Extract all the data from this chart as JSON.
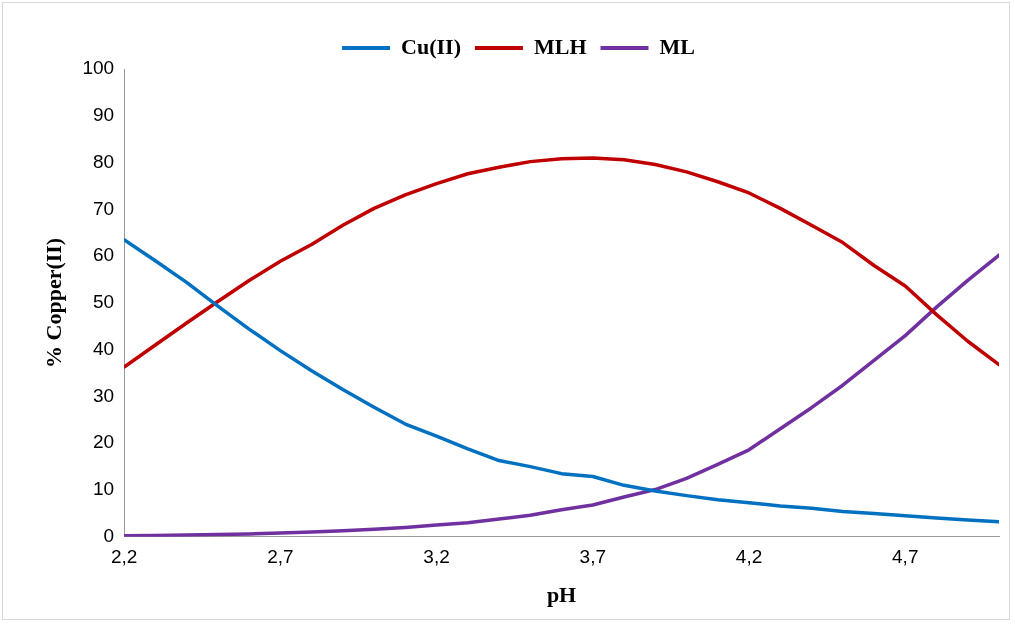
{
  "chart_data": {
    "type": "line",
    "xlabel": "pH",
    "ylabel": "% Copper(II)",
    "x": [
      2.2,
      2.3,
      2.4,
      2.5,
      2.6,
      2.7,
      2.8,
      2.9,
      3.0,
      3.1,
      3.2,
      3.3,
      3.4,
      3.5,
      3.6,
      3.7,
      3.8,
      3.9,
      4.0,
      4.1,
      4.2,
      4.3,
      4.4,
      4.5,
      4.6,
      4.7,
      4.8,
      4.9,
      5.0
    ],
    "xlim": [
      2.2,
      5.0
    ],
    "xticks": [
      {
        "value": 2.2,
        "label": "2,2"
      },
      {
        "value": 2.7,
        "label": "2,7"
      },
      {
        "value": 3.2,
        "label": "3,2"
      },
      {
        "value": 3.7,
        "label": "3,7"
      },
      {
        "value": 4.2,
        "label": "4,2"
      },
      {
        "value": 4.7,
        "label": "4,7"
      }
    ],
    "ylim": [
      0,
      100
    ],
    "yticks": [
      0,
      10,
      20,
      30,
      40,
      50,
      60,
      70,
      80,
      90,
      100
    ],
    "grid": false,
    "legend": "top",
    "marker": "none",
    "line_style": "solid",
    "series": [
      {
        "name": "Cu(II)",
        "color": "#0070c0",
        "values": [
          63.5,
          59.0,
          54.4,
          49.3,
          44.4,
          39.8,
          35.5,
          31.5,
          27.7,
          24.1,
          21.5,
          18.8,
          16.3,
          15.0,
          13.5,
          12.9,
          11.0,
          9.8,
          8.8,
          7.9,
          7.3,
          6.6,
          6.1,
          5.4,
          5.0,
          4.5,
          4.0,
          3.6,
          3.2
        ]
      },
      {
        "name": "MLH",
        "color": "#c00000",
        "values": [
          36.3,
          41.0,
          45.7,
          50.3,
          54.8,
          58.9,
          62.5,
          66.6,
          70.2,
          73.1,
          75.5,
          77.6,
          79.0,
          80.2,
          80.8,
          81.0,
          80.6,
          79.6,
          78.0,
          75.9,
          73.5,
          70.2,
          66.6,
          62.9,
          58.0,
          53.6,
          47.5,
          41.8,
          36.8
        ]
      },
      {
        "name": "ML",
        "color": "#7030a0",
        "values": [
          0.2,
          0.3,
          0.4,
          0.5,
          0.6,
          0.8,
          1.0,
          1.3,
          1.6,
          2.0,
          2.5,
          3.0,
          3.8,
          4.6,
          5.8,
          6.8,
          8.5,
          10.1,
          12.5,
          15.5,
          18.6,
          23.1,
          27.6,
          32.4,
          37.7,
          43.0,
          49.1,
          54.8,
          60.2
        ]
      }
    ]
  }
}
